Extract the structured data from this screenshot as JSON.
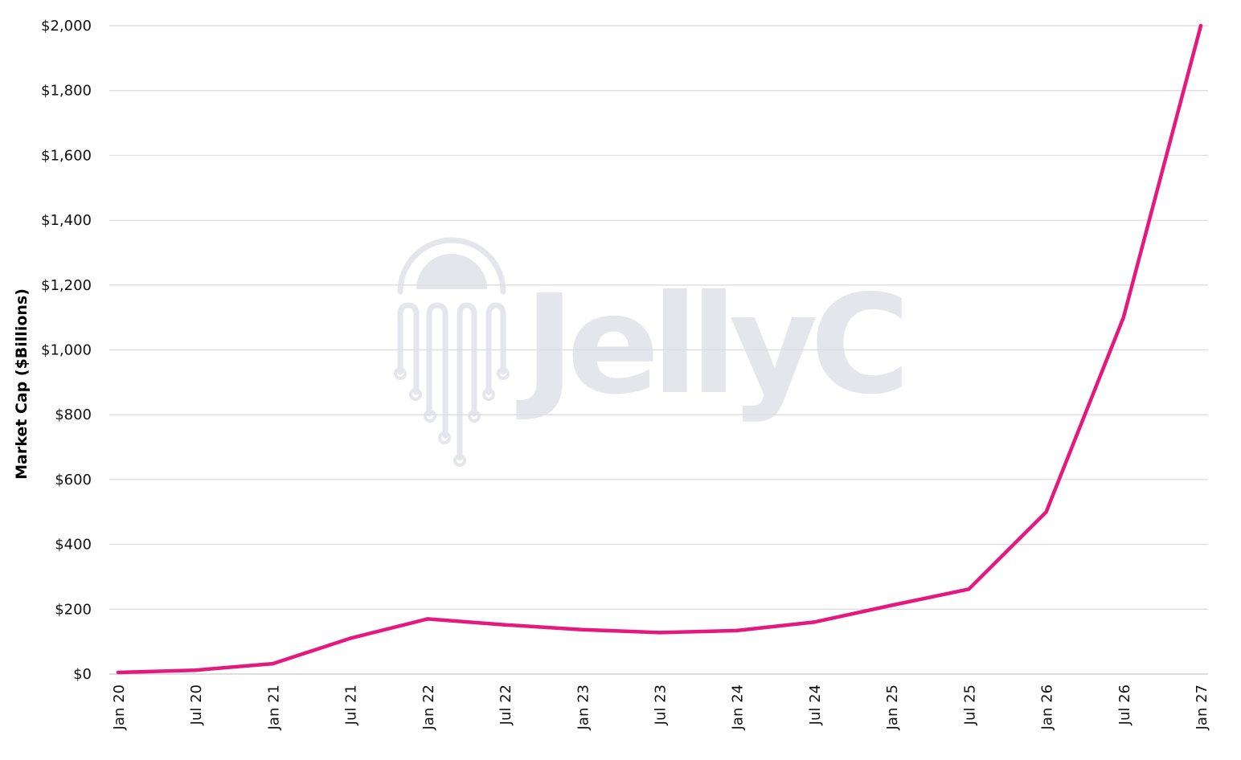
{
  "watermark": {
    "text": "JellyC"
  },
  "chart_data": {
    "type": "line",
    "title": "",
    "xlabel": "",
    "ylabel": "Market Cap ($Billions)",
    "ylim": [
      0,
      2000
    ],
    "y_ticks": [
      {
        "value": 0,
        "label": "$0"
      },
      {
        "value": 200,
        "label": "$200"
      },
      {
        "value": 400,
        "label": "$400"
      },
      {
        "value": 600,
        "label": "$600"
      },
      {
        "value": 800,
        "label": "$800"
      },
      {
        "value": 1000,
        "label": "$1,000"
      },
      {
        "value": 1200,
        "label": "$1,200"
      },
      {
        "value": 1400,
        "label": "$1,400"
      },
      {
        "value": 1600,
        "label": "$1,600"
      },
      {
        "value": 1800,
        "label": "$1,800"
      },
      {
        "value": 2000,
        "label": "$2,000"
      }
    ],
    "categories": [
      "Jan 20",
      "Jul 20",
      "Jan 21",
      "Jul 21",
      "Jan 22",
      "Jul 22",
      "Jan 23",
      "Jul 23",
      "Jan 24",
      "Jul 24",
      "Jan 25",
      "Jul 25",
      "Jan 26",
      "Jul 26",
      "Jan 27"
    ],
    "series": [
      {
        "values": [
          5,
          12,
          32,
          110,
          170,
          152,
          137,
          128,
          134,
          160,
          212,
          262,
          500,
          1100,
          2000
        ],
        "color": "#e5187f"
      }
    ],
    "grid": true,
    "legend": "none",
    "colors": {
      "line": "#e5187f",
      "grid": "#dcdce2",
      "axis": "#111111",
      "watermark": "#e5e5ec"
    }
  }
}
